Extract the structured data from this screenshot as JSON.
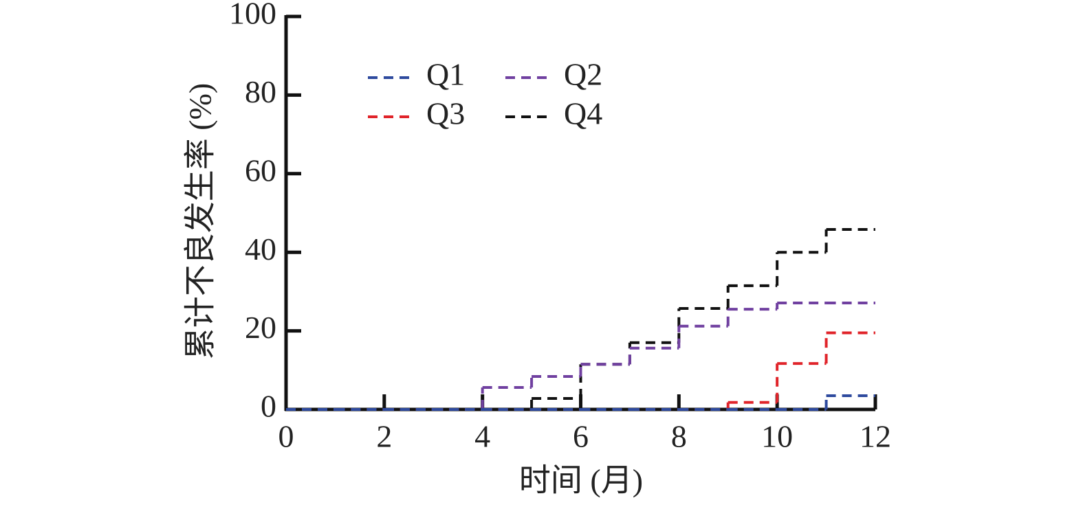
{
  "chart_data": {
    "type": "line",
    "step": "post",
    "xlabel": "时间 (月)",
    "ylabel": "累计不良发生率 (%)",
    "x": [
      0,
      1,
      2,
      3,
      4,
      5,
      6,
      7,
      8,
      9,
      10,
      11
    ],
    "series": [
      {
        "name": "Q1",
        "color": "#2e4a9e",
        "values": [
          0,
          0,
          0,
          0,
          0,
          0,
          0,
          0,
          0,
          0,
          0,
          3.5
        ]
      },
      {
        "name": "Q2",
        "color": "#7040a0",
        "values": [
          0,
          0,
          0,
          0,
          5.6,
          8.4,
          11.5,
          15.6,
          21.2,
          25.5,
          27.1,
          27.1
        ]
      },
      {
        "name": "Q3",
        "color": "#e0242a",
        "values": [
          0,
          0,
          0,
          0,
          0,
          0,
          0,
          0,
          0,
          1.8,
          11.7,
          19.5
        ]
      },
      {
        "name": "Q4",
        "color": "#111111",
        "values": [
          0,
          0,
          0,
          0,
          0,
          2.8,
          11.5,
          17,
          25.7,
          31.5,
          40,
          45.8
        ]
      }
    ],
    "xlim": [
      0,
      12
    ],
    "xticks": [
      0,
      2,
      4,
      6,
      8,
      10,
      12
    ],
    "ylim": [
      0,
      100
    ],
    "yticks": [
      0,
      20,
      40,
      60,
      80,
      100
    ],
    "legend": "upper left"
  }
}
